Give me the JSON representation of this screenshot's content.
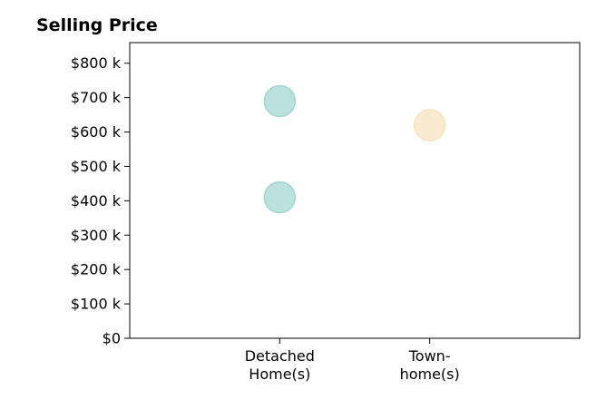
{
  "chart_data": {
    "type": "scatter",
    "title": "Selling Price",
    "xlabel": "",
    "ylabel": "",
    "categories": [
      [
        "Detached",
        "Home(s)"
      ],
      [
        "Town-",
        "home(s)"
      ]
    ],
    "xlim": [
      -1,
      2
    ],
    "ylim": [
      0,
      860000
    ],
    "y_ticks": [
      0,
      100000,
      200000,
      300000,
      400000,
      500000,
      600000,
      700000,
      800000
    ],
    "y_tick_labels": [
      "$0",
      "$100 k",
      "$200 k",
      "$300 k",
      "$400 k",
      "$500 k",
      "$600 k",
      "$700 k",
      "$800 k"
    ],
    "grid": false,
    "points": [
      {
        "category": 0,
        "y": 690000,
        "color": "#9ed6cf"
      },
      {
        "category": 0,
        "y": 410000,
        "color": "#9ed6cf"
      },
      {
        "category": 1,
        "y": 620000,
        "color": "#f6e3bb"
      }
    ],
    "colors": {
      "detached": "#9ed6cf",
      "townhome": "#f6e3bb"
    }
  }
}
